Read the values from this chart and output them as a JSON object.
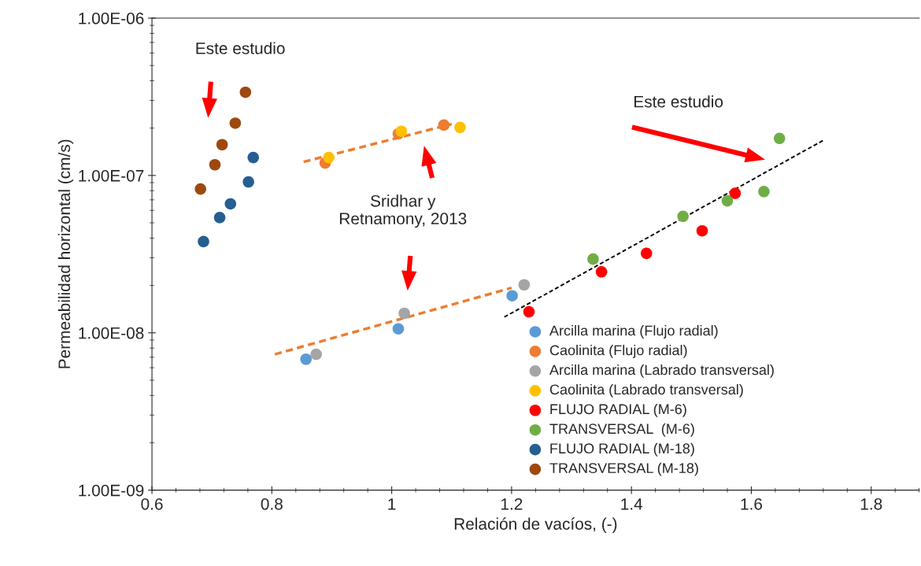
{
  "chart_data": {
    "type": "scatter",
    "xlabel": "Relación de vacíos, (-)",
    "ylabel": "Permeabilidad horizontal (cm/s)",
    "xlim": [
      0.6,
      1.88
    ],
    "xticks": [
      0.6,
      0.8,
      1,
      1.2,
      1.4,
      1.6,
      1.8
    ],
    "ylim": [
      1e-09,
      1e-06
    ],
    "yticks": [
      {
        "value": 1e-09,
        "label": "1.00E-09"
      },
      {
        "value": 1e-08,
        "label": "1.00E-08"
      },
      {
        "value": 1e-07,
        "label": "1.00E-07"
      },
      {
        "value": 1e-06,
        "label": "1.00E-06"
      }
    ],
    "log": "y",
    "grid": false,
    "legend": "bottom right",
    "marker": "circle",
    "series": [
      {
        "name": "Arcilla marina (Flujo radial)",
        "color": "#5b9bd5",
        "x": [
          0.857,
          1.011,
          1.201
        ],
        "values": [
          6.8e-09,
          1.06e-08,
          1.72e-08
        ]
      },
      {
        "name": "Caolinita (Flujo radial)",
        "color": "#ed7d31",
        "x": [
          0.889,
          1.011,
          1.087
        ],
        "values": [
          1.2e-07,
          1.84e-07,
          2.09e-07
        ]
      },
      {
        "name": "Arcilla marina (Labrado transversal)",
        "color": "#a5a5a5",
        "x": [
          0.874,
          1.021,
          1.221
        ],
        "values": [
          7.3e-09,
          1.33e-08,
          2.02e-08
        ]
      },
      {
        "name": "Caolinita (Labrado transversal)",
        "color": "#ffc000",
        "x": [
          0.895,
          1.016,
          1.114
        ],
        "values": [
          1.3e-07,
          1.91e-07,
          2.02e-07
        ]
      },
      {
        "name": "FLUJO RADIAL (M-6)",
        "color": "#ff0000",
        "x": [
          1.229,
          1.35,
          1.425,
          1.518,
          1.573
        ],
        "values": [
          1.36e-08,
          2.44e-08,
          3.2e-08,
          4.45e-08,
          7.7e-08
        ]
      },
      {
        "name": "TRANSVERSAL  (M-6)",
        "color": "#70ad47",
        "x": [
          1.336,
          1.486,
          1.56,
          1.621,
          1.647
        ],
        "values": [
          2.94e-08,
          5.5e-08,
          6.9e-08,
          7.9e-08,
          1.72e-07
        ]
      },
      {
        "name": "FLUJO RADIAL (M-18)",
        "color": "#255e91",
        "x": [
          0.686,
          0.713,
          0.731,
          0.761,
          0.769
        ],
        "values": [
          3.8e-08,
          5.4e-08,
          6.6e-08,
          9.1e-08,
          1.3e-07
        ]
      },
      {
        "name": "TRANSVERSAL (M-18)",
        "color": "#9e480e",
        "x": [
          0.681,
          0.705,
          0.717,
          0.739,
          0.756
        ],
        "values": [
          8.2e-08,
          1.17e-07,
          1.57e-07,
          2.15e-07,
          3.38e-07
        ]
      },
      {
        "type": "line",
        "line_style": "dashed",
        "marker": "none",
        "color": "#ed7d31",
        "x": [
          0.853,
          1.1
        ],
        "values": [
          1.22e-07,
          2.12e-07
        ]
      },
      {
        "type": "line",
        "line_style": "dashed",
        "marker": "none",
        "color": "#ed7d31",
        "x": [
          0.805,
          1.2
        ],
        "values": [
          7.3e-09,
          1.93e-08
        ]
      },
      {
        "type": "line",
        "line_style": "dashed",
        "marker": "none",
        "color": "#000000",
        "x": [
          1.188,
          1.721
        ],
        "values": [
          1.26e-08,
          1.68e-07
        ]
      }
    ],
    "annotations": [
      "Este estudio",
      "Este estudio",
      "Sridhar y\nRetnamony, 2013"
    ]
  }
}
